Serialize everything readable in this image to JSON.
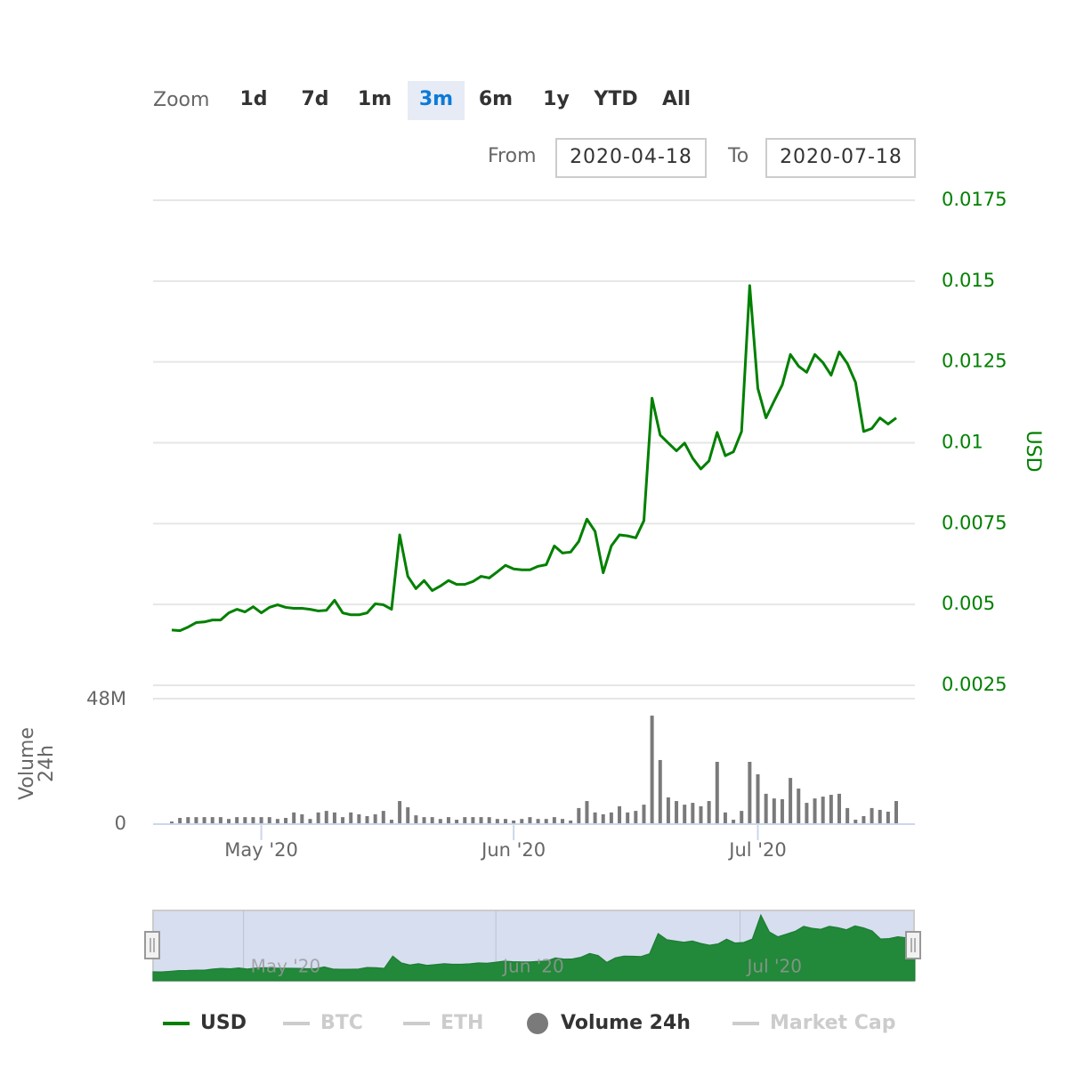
{
  "zoom": {
    "label": "Zoom",
    "buttons": [
      "1d",
      "7d",
      "1m",
      "3m",
      "6m",
      "1y",
      "YTD",
      "All"
    ],
    "selected": "3m"
  },
  "range": {
    "from_label": "From",
    "from": "2020-04-18",
    "to_label": "To",
    "to": "2020-07-18"
  },
  "chart_data": [
    {
      "type": "line",
      "ylabel": "USD",
      "ylim": [
        0.0025,
        0.0175
      ],
      "yticks": [
        0.0025,
        0.005,
        0.0075,
        0.01,
        0.0125,
        0.015,
        0.0175
      ],
      "grid": true,
      "xticks": [
        {
          "value": 11,
          "label": "May '20"
        },
        {
          "value": 42,
          "label": "Jun '20"
        },
        {
          "value": 72,
          "label": "Jul '20"
        }
      ],
      "series": [
        {
          "name": "USD",
          "color": "#008000",
          "values": [
            0.00421,
            0.00419,
            0.0043,
            0.00444,
            0.00446,
            0.00452,
            0.00452,
            0.00474,
            0.00485,
            0.00477,
            0.00493,
            0.00474,
            0.00491,
            0.00499,
            0.00491,
            0.00488,
            0.00488,
            0.00485,
            0.0048,
            0.00482,
            0.00513,
            0.00474,
            0.00468,
            0.00468,
            0.00474,
            0.00502,
            0.00499,
            0.00485,
            0.00715,
            0.00587,
            0.00549,
            0.00574,
            0.00543,
            0.00557,
            0.00574,
            0.00562,
            0.00562,
            0.00571,
            0.00587,
            0.00582,
            0.00601,
            0.00621,
            0.0061,
            0.00607,
            0.00607,
            0.00618,
            0.00623,
            0.00681,
            0.00659,
            0.00662,
            0.00695,
            0.00764,
            0.00726,
            0.00598,
            0.00681,
            0.00715,
            0.00712,
            0.00706,
            0.00759,
            0.01138,
            0.01024,
            0.00999,
            0.00975,
            0.00999,
            0.00952,
            0.00919,
            0.00944,
            0.01032,
            0.0096,
            0.00972,
            0.01035,
            0.01486,
            0.01168,
            0.01077,
            0.01129,
            0.01179,
            0.01273,
            0.01237,
            0.01218,
            0.01273,
            0.01248,
            0.01209,
            0.01281,
            0.01245,
            0.01187,
            0.01035,
            0.01044,
            0.01077,
            0.01058,
            0.01077
          ]
        },
        {
          "name": "BTC",
          "color": "#cccccc",
          "visible": false
        },
        {
          "name": "ETH",
          "color": "#cccccc",
          "visible": false
        }
      ]
    },
    {
      "type": "bar",
      "ylabel": "Volume 24h",
      "ylim": [
        0,
        48000000
      ],
      "yticks": [
        0,
        {
          "value": 48000000,
          "label": "48M"
        }
      ],
      "series": [
        {
          "name": "Volume 24h",
          "color": "#7a7a7a",
          "values": [
            1000000,
            2400000,
            2700000,
            2700000,
            2700000,
            2700000,
            2700000,
            2000000,
            2700000,
            2700000,
            2700000,
            2700000,
            2700000,
            2000000,
            2400000,
            4500000,
            3800000,
            2000000,
            4500000,
            5100000,
            4500000,
            2700000,
            4500000,
            3800000,
            3100000,
            3800000,
            5100000,
            1700000,
            8900000,
            6500000,
            3400000,
            2700000,
            2700000,
            2000000,
            2700000,
            1700000,
            2700000,
            2700000,
            2700000,
            2700000,
            2000000,
            2000000,
            1400000,
            2000000,
            2700000,
            2000000,
            2000000,
            2700000,
            2000000,
            1400000,
            6200000,
            8900000,
            4500000,
            3800000,
            4500000,
            6900000,
            4500000,
            5100000,
            7500000,
            41800000,
            24700000,
            10300000,
            8900000,
            7500000,
            8200000,
            6900000,
            8900000,
            24000000,
            4500000,
            1700000,
            5100000,
            24000000,
            19200000,
            11700000,
            9900000,
            9600000,
            17800000,
            13700000,
            8200000,
            9900000,
            10600000,
            11300000,
            11700000,
            6200000,
            1700000,
            3100000,
            6200000,
            5500000,
            4800000,
            8900000
          ]
        },
        {
          "name": "Market Cap",
          "color": "#cccccc",
          "visible": false
        }
      ]
    }
  ]
}
